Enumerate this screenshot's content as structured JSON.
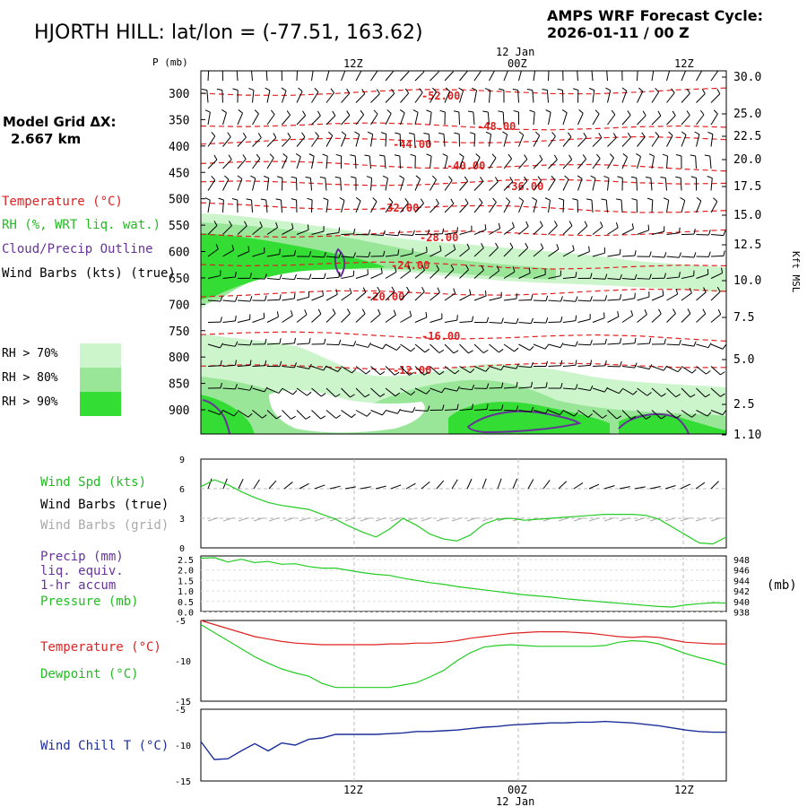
{
  "header": {
    "title": "HJORTH HILL:  lat/lon = (-77.51, 163.62)",
    "cycle_line1": "AMPS WRF Forecast Cycle:",
    "cycle_line2": "2026-01-11 / 00  Z",
    "grid_line1": "Model Grid ΔX:",
    "grid_line2": "2.667 km"
  },
  "legend": {
    "temperature": "Temperature (°C)",
    "rh": "RH (%, WRT liq. wat.)",
    "cloud": "Cloud/Precip Outline",
    "wind": "Wind Barbs (kts) (true)",
    "rh70": "RH > 70%",
    "rh80": "RH > 80%",
    "rh90": "RH > 90%",
    "rh_colors": [
      "#ccf5cc",
      "#99e699",
      "#33dd33"
    ]
  },
  "time_axis": {
    "top_ticks": [
      "12Z",
      "00Z",
      "12Z"
    ],
    "top_date": "12 Jan",
    "bottom_ticks": [
      "12Z",
      "00Z",
      "12Z"
    ],
    "bottom_date": "12 Jan"
  },
  "panel_labels": {
    "p_axis": "P (mb)",
    "kft": "Kft MSL",
    "wind_spd": "Wind Spd (kts)",
    "wind_barbs_true": "Wind Barbs (true)",
    "wind_barbs_grid": "Wind Barbs (grid)",
    "precip1": "Precip (mm)",
    "precip2": "liq. equiv.",
    "precip3": "1-hr accum",
    "pressure": "Pressure (mb)",
    "mb": "(mb)",
    "temp": "Temperature (°C)",
    "dewpoint": "Dewpoint (°C)",
    "wind_chill": "Wind Chill T (°C)"
  },
  "chart_data": [
    {
      "type": "heatmap",
      "name": "cross-section",
      "pressure_ticks": [
        "300",
        "350",
        "400",
        "450",
        "500",
        "550",
        "600",
        "650",
        "700",
        "750",
        "800",
        "850",
        "900"
      ],
      "height_ticks": [
        "30.0",
        "25.0",
        "22.5",
        "20.0",
        "17.5",
        "15.0",
        "12.5",
        "10.0",
        "7.5",
        "5.0",
        "2.5",
        "1.10"
      ],
      "temperature_contours": [
        "-52.00",
        "-48.00",
        "-44.00",
        "-40.00",
        "-36.00",
        "-32.00",
        "-28.00",
        "-24.00",
        "-20.00",
        "-16.00",
        "-12.00"
      ]
    },
    {
      "type": "line",
      "name": "wind-speed",
      "yticks": [
        "0",
        "3",
        "6",
        "9"
      ],
      "ylim": [
        0,
        9
      ],
      "x": [
        0,
        2,
        4,
        6,
        8,
        10,
        12,
        14,
        16,
        18,
        20,
        22,
        24,
        26,
        28,
        30,
        32,
        34,
        36,
        38,
        40,
        42,
        44,
        46,
        48,
        50,
        52,
        54,
        56,
        58,
        60,
        62,
        64,
        66,
        68,
        70,
        72,
        74,
        76,
        78
      ],
      "wind_speed": [
        6.2,
        6.9,
        6.4,
        5.7,
        5.1,
        4.6,
        4.3,
        4.1,
        3.9,
        3.4,
        2.9,
        2.2,
        1.6,
        1.1,
        1.9,
        3.0,
        2.3,
        1.4,
        0.9,
        0.7,
        1.3,
        2.4,
        2.9,
        3.0,
        2.8,
        2.9,
        3.0,
        3.1,
        3.2,
        3.3,
        3.4,
        3.4,
        3.4,
        3.3,
        2.9,
        2.1,
        1.3,
        0.5,
        0.4,
        1.1
      ]
    },
    {
      "type": "line",
      "name": "precip-pressure",
      "precip_yticks": [
        "2.5",
        "2.0",
        "1.5",
        "1.0",
        "0.5",
        "0.0"
      ],
      "pressure_yticks": [
        "948",
        "946",
        "944",
        "942",
        "940",
        "938"
      ],
      "ylim": [
        938,
        948
      ],
      "x": [
        0,
        2,
        4,
        6,
        8,
        10,
        12,
        14,
        16,
        18,
        20,
        22,
        24,
        26,
        28,
        30,
        32,
        34,
        36,
        38,
        40,
        42,
        44,
        46,
        48,
        50,
        52,
        54,
        56,
        58,
        60,
        62,
        64,
        66,
        68,
        70,
        72,
        74,
        76,
        78
      ],
      "pressure": [
        947.6,
        947.7,
        946.9,
        947.4,
        946.8,
        947.0,
        946.5,
        946.6,
        946.1,
        945.8,
        945.8,
        945.4,
        945.0,
        944.7,
        944.5,
        944.0,
        943.6,
        943.2,
        942.9,
        942.5,
        942.2,
        941.9,
        941.6,
        941.3,
        941.0,
        940.8,
        940.6,
        940.3,
        940.1,
        939.9,
        939.7,
        939.5,
        939.3,
        939.1,
        938.9,
        938.8,
        939.2,
        939.4,
        939.6,
        939.5
      ]
    },
    {
      "type": "line",
      "name": "temperature-dewpoint",
      "yticks": [
        "-5",
        "-10",
        "-15"
      ],
      "ylim": [
        -15,
        -5
      ],
      "x": [
        0,
        2,
        4,
        6,
        8,
        10,
        12,
        14,
        16,
        18,
        20,
        22,
        24,
        26,
        28,
        30,
        32,
        34,
        36,
        38,
        40,
        42,
        44,
        46,
        48,
        50,
        52,
        54,
        56,
        58,
        60,
        62,
        64,
        66,
        68,
        70,
        72,
        74,
        76,
        78
      ],
      "temperature": [
        -5.0,
        -5.5,
        -6.0,
        -6.5,
        -7.0,
        -7.3,
        -7.6,
        -7.8,
        -7.9,
        -8.0,
        -8.0,
        -8.0,
        -8.0,
        -8.0,
        -7.9,
        -7.9,
        -7.8,
        -7.8,
        -7.7,
        -7.5,
        -7.2,
        -7.0,
        -6.8,
        -6.6,
        -6.5,
        -6.4,
        -6.4,
        -6.4,
        -6.5,
        -6.6,
        -6.8,
        -7.0,
        -7.1,
        -7.0,
        -7.1,
        -7.4,
        -7.7,
        -7.8,
        -7.9,
        -7.9
      ],
      "dewpoint": [
        -5.5,
        -6.5,
        -7.5,
        -8.5,
        -9.5,
        -10.3,
        -11.0,
        -11.5,
        -11.9,
        -12.8,
        -13.3,
        -13.3,
        -13.3,
        -13.3,
        -13.3,
        -13.0,
        -12.7,
        -12.0,
        -11.2,
        -10.0,
        -9.0,
        -8.3,
        -8.1,
        -8.0,
        -8.1,
        -8.2,
        -8.2,
        -8.2,
        -8.2,
        -8.2,
        -8.1,
        -7.7,
        -7.5,
        -7.6,
        -7.9,
        -8.5,
        -9.1,
        -9.6,
        -10.0,
        -10.5
      ]
    },
    {
      "type": "line",
      "name": "wind-chill",
      "yticks": [
        "-5",
        "-10",
        "-15"
      ],
      "ylim": [
        -15,
        -5
      ],
      "x": [
        0,
        2,
        4,
        6,
        8,
        10,
        12,
        14,
        16,
        18,
        20,
        22,
        24,
        26,
        28,
        30,
        32,
        34,
        36,
        38,
        40,
        42,
        44,
        46,
        48,
        50,
        52,
        54,
        56,
        58,
        60,
        62,
        64,
        66,
        68,
        70,
        72,
        74,
        76,
        78
      ],
      "wind_chill": [
        -9.5,
        -12.0,
        -11.9,
        -10.8,
        -9.8,
        -10.8,
        -9.7,
        -10.0,
        -9.2,
        -9.0,
        -8.5,
        -8.5,
        -8.5,
        -8.5,
        -8.4,
        -8.3,
        -8.1,
        -8.1,
        -8.0,
        -7.9,
        -7.7,
        -7.5,
        -7.4,
        -7.2,
        -7.1,
        -7.0,
        -6.9,
        -6.9,
        -6.8,
        -6.8,
        -6.7,
        -6.8,
        -6.9,
        -7.1,
        -7.3,
        -7.6,
        -7.9,
        -8.1,
        -8.2,
        -8.2
      ]
    }
  ]
}
